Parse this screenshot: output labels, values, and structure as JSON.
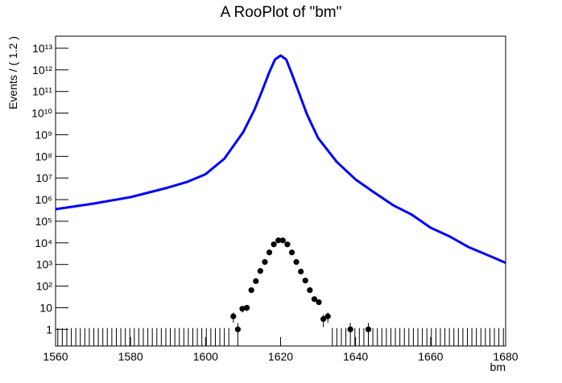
{
  "chart_data": {
    "type": "rooplot",
    "title": "A RooPlot of \"bm\"",
    "x_label": "bm",
    "y_label": "Events / ( 1.2 )",
    "log_y": true,
    "xlim": [
      1560,
      1680
    ],
    "ylim": [
      0.17,
      36000000000000.0
    ],
    "xticks": [
      1560,
      1580,
      1600,
      1620,
      1640,
      1660,
      1680
    ],
    "yticks": [
      1,
      10,
      {
        "value": 100,
        "label": "10²"
      },
      {
        "value": 1000,
        "label": "10³"
      },
      {
        "value": 10000,
        "label": "10⁴"
      },
      {
        "value": 100000,
        "label": "10⁵"
      },
      {
        "value": 1000000,
        "label": "10⁶"
      },
      {
        "value": 10000000,
        "label": "10⁷"
      },
      {
        "value": 100000000,
        "label": "10⁸"
      },
      {
        "value": 1000000000,
        "label": "10⁹"
      },
      {
        "value": 10000000000,
        "label": "10¹⁰"
      },
      {
        "value": 100000000000,
        "label": "10¹¹"
      },
      {
        "value": 1000000000000,
        "label": "10¹²"
      },
      {
        "value": 10000000000000,
        "label": "10¹³"
      }
    ],
    "empty_bin_error": 1.15,
    "series": [
      {
        "style": "points",
        "color": "#000000",
        "x": [
          1560.6,
          1561.8,
          1563,
          1564.2,
          1565.4,
          1566.6,
          1567.8,
          1569,
          1570.2,
          1571.4,
          1572.6,
          1573.8,
          1575,
          1576.2,
          1577.4,
          1578.6,
          1579.8,
          1581,
          1582.2,
          1583.4,
          1584.6,
          1585.8,
          1587,
          1588.2,
          1589.4,
          1590.6,
          1591.8,
          1593,
          1594.2,
          1595.4,
          1596.6,
          1597.8,
          1599,
          1600.2,
          1601.4,
          1602.6,
          1603.8,
          1605,
          1606.2,
          1607.4,
          1608.6,
          1609.8,
          1611,
          1612.2,
          1613.4,
          1614.6,
          1615.8,
          1617,
          1618.2,
          1619.4,
          1620.6,
          1621.8,
          1623,
          1624.2,
          1625.4,
          1626.6,
          1627.8,
          1629,
          1630.2,
          1631.4,
          1632.6,
          1633.8,
          1635,
          1636.2,
          1637.4,
          1638.6,
          1639.8,
          1641,
          1642.2,
          1643.4,
          1644.6,
          1645.8,
          1647,
          1648.2,
          1649.4,
          1650.6,
          1651.8,
          1653,
          1654.2,
          1655.4,
          1656.6,
          1657.8,
          1659,
          1660.2,
          1661.4,
          1662.6,
          1663.8,
          1665,
          1666.2,
          1667.4,
          1668.6,
          1669.8,
          1671,
          1672.2,
          1673.4,
          1674.6,
          1675.8,
          1677,
          1678.2,
          1679.4
        ],
        "values": [
          0,
          0,
          0,
          0,
          0,
          0,
          0,
          0,
          0,
          0,
          0,
          0,
          0,
          0,
          0,
          0,
          0,
          0,
          0,
          0,
          0,
          0,
          0,
          0,
          0,
          0,
          0,
          0,
          0,
          0,
          0,
          0,
          0,
          0,
          0,
          0,
          0,
          0,
          0,
          4,
          1,
          9,
          10,
          65,
          170,
          500,
          1300,
          3600,
          8500,
          13000,
          13000,
          8500,
          3600,
          1300,
          470,
          180,
          65,
          25,
          18,
          3,
          4,
          0,
          0,
          0,
          0,
          1,
          0,
          0,
          0,
          1,
          0,
          0,
          0,
          0,
          0,
          0,
          0,
          0,
          0,
          0,
          0,
          0,
          0,
          0,
          0,
          0,
          0,
          0,
          0,
          0,
          0,
          0,
          0,
          0,
          0,
          0,
          0,
          0,
          0,
          0
        ]
      },
      {
        "style": "line",
        "color": "#0000ff",
        "x": [
          1560,
          1570,
          1580,
          1590,
          1595,
          1600,
          1605,
          1610,
          1613,
          1615,
          1617,
          1618.5,
          1620,
          1621.5,
          1623,
          1625,
          1627,
          1630,
          1635,
          1640,
          1645,
          1650,
          1655,
          1660,
          1665,
          1670,
          1675,
          1680
        ],
        "values": [
          360000,
          650000,
          1300000,
          3600000,
          6500000,
          15000000,
          78000000,
          1300000000,
          14000000000,
          100000000000,
          790000000000,
          3000000000000,
          4600000000000,
          3000000000000,
          650000000000,
          78000000000,
          9000000000,
          700000000,
          55000000,
          8500000,
          2100000,
          550000,
          200000,
          50000,
          20000,
          6500,
          2800,
          1200
        ]
      }
    ]
  }
}
